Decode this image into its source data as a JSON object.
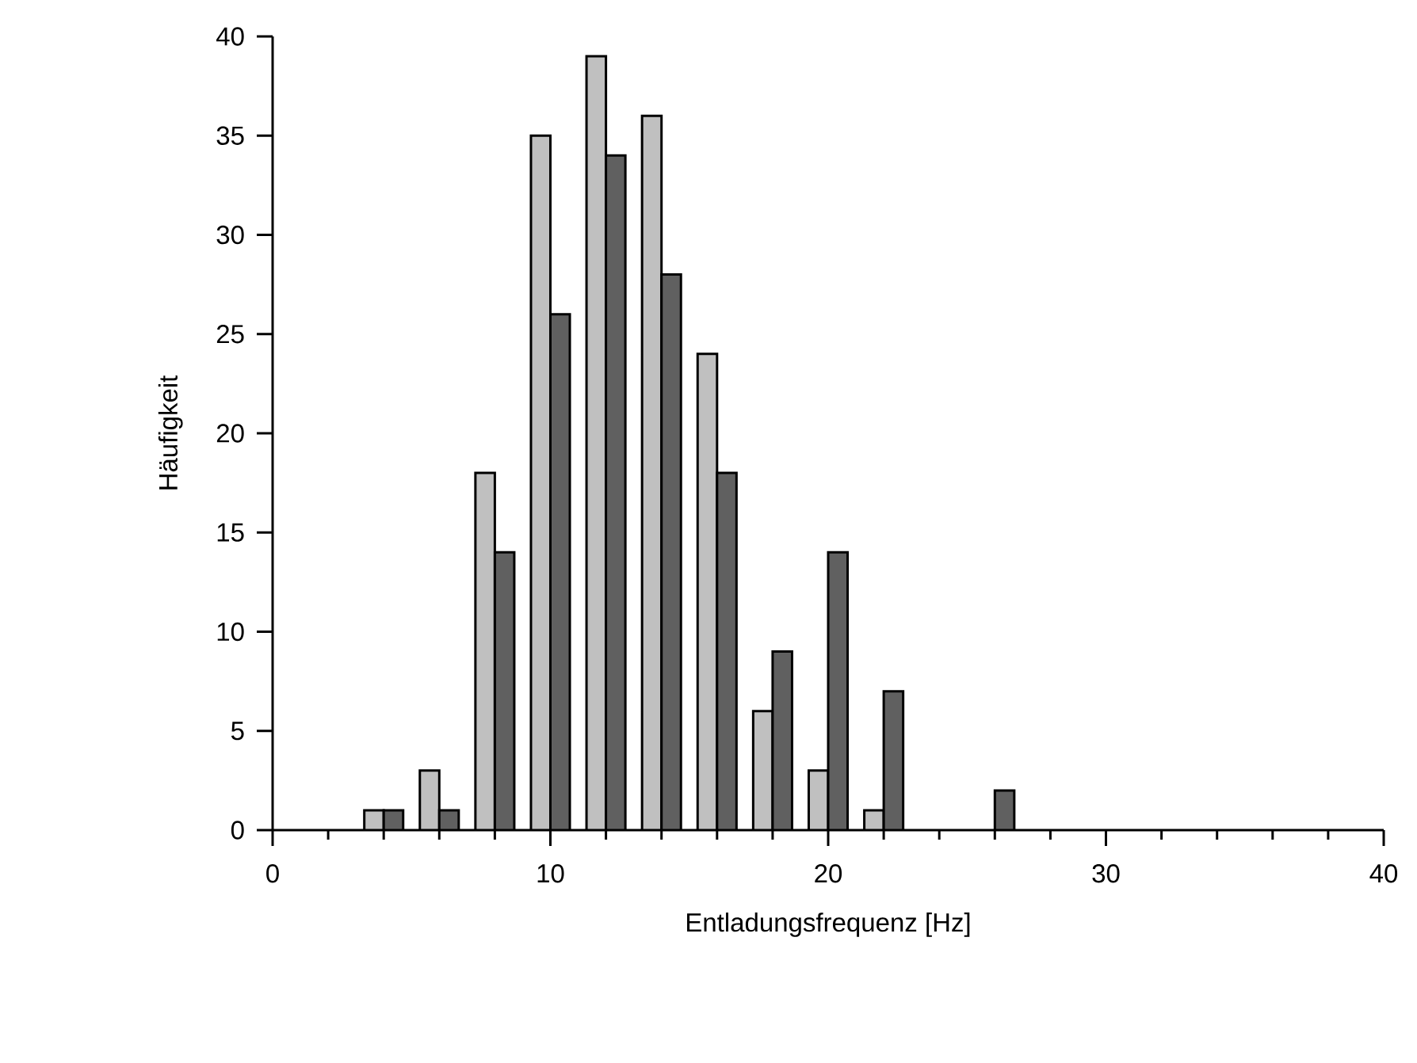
{
  "chart_data": {
    "type": "bar",
    "xlabel": "Entladungsfrequenz [Hz]",
    "ylabel": "Häufigkeit",
    "x": [
      4,
      6,
      8,
      10,
      12,
      14,
      16,
      18,
      20,
      22,
      26
    ],
    "series": [
      {
        "color": "#c0c0c0",
        "values": [
          1,
          3,
          18,
          35,
          39,
          36,
          24,
          6,
          3,
          1,
          null
        ]
      },
      {
        "color": "#606060",
        "values": [
          1,
          1,
          14,
          26,
          34,
          28,
          18,
          9,
          14,
          7,
          2
        ]
      }
    ],
    "xlim": [
      0,
      40
    ],
    "xticks": [
      0,
      {
        "value": 2,
        "label": null
      },
      {
        "value": 4,
        "label": null
      },
      {
        "value": 6,
        "label": null
      },
      {
        "value": 8,
        "label": null
      },
      10,
      {
        "value": 12,
        "label": null
      },
      {
        "value": 14,
        "label": null
      },
      {
        "value": 16,
        "label": null
      },
      {
        "value": 18,
        "label": null
      },
      20,
      {
        "value": 22,
        "label": null
      },
      {
        "value": 24,
        "label": null
      },
      {
        "value": 26,
        "label": null
      },
      {
        "value": 28,
        "label": null
      },
      30,
      {
        "value": 32,
        "label": null
      },
      {
        "value": 34,
        "label": null
      },
      {
        "value": 36,
        "label": null
      },
      {
        "value": 38,
        "label": null
      },
      40
    ],
    "ylim": [
      0,
      40
    ],
    "yticks": [
      0,
      5,
      10,
      15,
      20,
      25,
      30,
      35,
      40
    ],
    "grid": false,
    "legend": false
  }
}
